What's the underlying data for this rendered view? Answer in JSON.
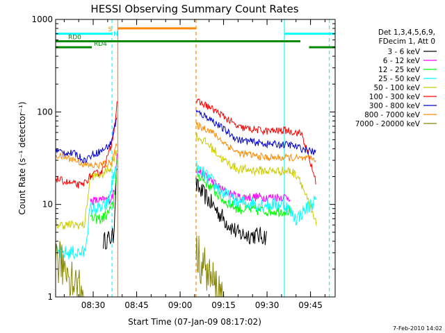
{
  "chart_data": {
    "type": "line",
    "title": "HESSI Observing Summary Count Rates",
    "xlabel": "Start Time (07-Jan-09 08:17:02)",
    "ylabel": "Count Rate (s⁻¹ detector⁻¹)",
    "yscale": "log",
    "ylim": [
      1,
      1000
    ],
    "xlim": [
      "08:17:02",
      "09:53:30"
    ],
    "x_ticks": [
      "08:30",
      "08:45",
      "09:00",
      "09:15",
      "09:30",
      "09:45"
    ],
    "y_ticks": [
      "1",
      "10",
      "100",
      "1000"
    ],
    "legend_header": [
      "Det 1,3,4,5,6,9,",
      "FDecim 1, Att 0"
    ],
    "timestamp": "7-Feb-2010 14:02",
    "gaps": [
      [
        "08:38:30",
        "09:05:30"
      ]
    ],
    "series": [
      {
        "name": "3 - 6 keV",
        "color": "#000000",
        "pre": [
          {
            "t": "08:33:30",
            "y": 4.0
          },
          {
            "t": "08:35:00",
            "y": 4.2
          },
          {
            "t": "08:37:00",
            "y": 4.5
          },
          {
            "t": "08:38:15",
            "y": 30
          }
        ],
        "post": [
          {
            "t": "09:05:30",
            "y": 16
          },
          {
            "t": "09:10:00",
            "y": 11
          },
          {
            "t": "09:15:00",
            "y": 7
          },
          {
            "t": "09:20:00",
            "y": 4.8
          },
          {
            "t": "09:30:00",
            "y": 4.5
          }
        ]
      },
      {
        "name": "6 - 12 keV",
        "color": "#ff00ff",
        "pre": [
          {
            "t": "08:29:00",
            "y": 11
          },
          {
            "t": "08:33:00",
            "y": 11
          },
          {
            "t": "08:36:00",
            "y": 11.5
          },
          {
            "t": "08:37:30",
            "y": 14
          },
          {
            "t": "08:38:15",
            "y": 40
          }
        ],
        "post": [
          {
            "t": "09:05:30",
            "y": 24
          },
          {
            "t": "09:10:00",
            "y": 19
          },
          {
            "t": "09:15:00",
            "y": 14
          },
          {
            "t": "09:20:00",
            "y": 12
          },
          {
            "t": "09:30:00",
            "y": 12
          },
          {
            "t": "09:38:00",
            "y": 12
          }
        ]
      },
      {
        "name": "12 - 25 keV",
        "color": "#00ff00",
        "pre": [
          {
            "t": "08:29:00",
            "y": 7
          },
          {
            "t": "08:33:00",
            "y": 7
          },
          {
            "t": "08:35:00",
            "y": 8
          },
          {
            "t": "08:37:00",
            "y": 10
          },
          {
            "t": "08:38:15",
            "y": 30
          }
        ],
        "post": [
          {
            "t": "09:05:30",
            "y": 22
          },
          {
            "t": "09:10:00",
            "y": 16
          },
          {
            "t": "09:15:00",
            "y": 11
          },
          {
            "t": "09:20:00",
            "y": 9
          },
          {
            "t": "09:30:00",
            "y": 8.5
          },
          {
            "t": "09:38:00",
            "y": 8.5
          }
        ]
      },
      {
        "name": "25 - 50 keV",
        "color": "#00ffff",
        "pre": [
          {
            "t": "08:17:02",
            "y": 3
          },
          {
            "t": "08:27:00",
            "y": 3
          },
          {
            "t": "08:29:00",
            "y": 9
          },
          {
            "t": "08:33:00",
            "y": 9
          },
          {
            "t": "08:35:00",
            "y": 10
          },
          {
            "t": "08:38:15",
            "y": 30
          }
        ],
        "post": [
          {
            "t": "09:05:30",
            "y": 25
          },
          {
            "t": "09:10:00",
            "y": 19
          },
          {
            "t": "09:15:00",
            "y": 13
          },
          {
            "t": "09:20:00",
            "y": 10.5
          },
          {
            "t": "09:30:00",
            "y": 10
          },
          {
            "t": "09:36:00",
            "y": 10
          },
          {
            "t": "09:40:00",
            "y": 7
          },
          {
            "t": "09:45:00",
            "y": 10
          },
          {
            "t": "09:47:00",
            "y": 11
          }
        ]
      },
      {
        "name": "50 - 100 keV",
        "color": "#cccc00",
        "pre": [
          {
            "t": "08:17:02",
            "y": 6
          },
          {
            "t": "08:27:00",
            "y": 6
          },
          {
            "t": "08:29:00",
            "y": 20
          },
          {
            "t": "08:33:00",
            "y": 21
          },
          {
            "t": "08:36:00",
            "y": 25
          },
          {
            "t": "08:38:15",
            "y": 40
          }
        ],
        "post": [
          {
            "t": "09:05:30",
            "y": 55
          },
          {
            "t": "09:10:00",
            "y": 44
          },
          {
            "t": "09:15:00",
            "y": 30
          },
          {
            "t": "09:20:00",
            "y": 24
          },
          {
            "t": "09:30:00",
            "y": 23
          },
          {
            "t": "09:38:00",
            "y": 23
          },
          {
            "t": "09:41:00",
            "y": 20
          },
          {
            "t": "09:47:00",
            "y": 6
          }
        ]
      },
      {
        "name": "100 - 300 keV",
        "color": "#ff0000",
        "pre": [
          {
            "t": "08:17:02",
            "y": 19
          },
          {
            "t": "08:22:00",
            "y": 17
          },
          {
            "t": "08:26:00",
            "y": 16
          },
          {
            "t": "08:29:00",
            "y": 20
          },
          {
            "t": "08:33:00",
            "y": 23
          },
          {
            "t": "08:36:00",
            "y": 40
          },
          {
            "t": "08:37:30",
            "y": 75
          },
          {
            "t": "08:38:15",
            "y": 135
          }
        ],
        "post": [
          {
            "t": "09:05:30",
            "y": 130
          },
          {
            "t": "09:09:00",
            "y": 118
          },
          {
            "t": "09:15:00",
            "y": 90
          },
          {
            "t": "09:20:00",
            "y": 68
          },
          {
            "t": "09:30:00",
            "y": 62
          },
          {
            "t": "09:37:00",
            "y": 63
          },
          {
            "t": "09:42:00",
            "y": 58
          },
          {
            "t": "09:47:00",
            "y": 17
          }
        ]
      },
      {
        "name": "300 - 800 keV",
        "color": "#0000cc",
        "pre": [
          {
            "t": "08:17:02",
            "y": 38
          },
          {
            "t": "08:24:00",
            "y": 35
          },
          {
            "t": "08:27:00",
            "y": 30
          },
          {
            "t": "08:30:00",
            "y": 35
          },
          {
            "t": "08:33:00",
            "y": 38
          },
          {
            "t": "08:36:00",
            "y": 45
          },
          {
            "t": "08:38:15",
            "y": 90
          }
        ],
        "post": [
          {
            "t": "09:05:30",
            "y": 100
          },
          {
            "t": "09:10:00",
            "y": 86
          },
          {
            "t": "09:15:00",
            "y": 65
          },
          {
            "t": "09:20:00",
            "y": 50
          },
          {
            "t": "09:30:00",
            "y": 45
          },
          {
            "t": "09:38:00",
            "y": 44
          },
          {
            "t": "09:42:00",
            "y": 40
          },
          {
            "t": "09:47:00",
            "y": 36
          }
        ]
      },
      {
        "name": "800 - 7000 keV",
        "color": "#ff8800",
        "pre": [
          {
            "t": "08:17:02",
            "y": 34
          },
          {
            "t": "08:23:00",
            "y": 31
          },
          {
            "t": "08:27:00",
            "y": 27
          },
          {
            "t": "08:30:00",
            "y": 26
          },
          {
            "t": "08:33:00",
            "y": 27
          },
          {
            "t": "08:36:00",
            "y": 28
          },
          {
            "t": "08:38:15",
            "y": 45
          }
        ],
        "post": [
          {
            "t": "09:05:30",
            "y": 72
          },
          {
            "t": "09:10:00",
            "y": 64
          },
          {
            "t": "09:15:00",
            "y": 47
          },
          {
            "t": "09:20:00",
            "y": 36
          },
          {
            "t": "09:30:00",
            "y": 32
          },
          {
            "t": "09:38:00",
            "y": 32
          },
          {
            "t": "09:42:00",
            "y": 31
          },
          {
            "t": "09:47:00",
            "y": 31
          }
        ]
      },
      {
        "name": "7000 - 20000 keV",
        "color": "#888800",
        "pre": [
          {
            "t": "08:17:02",
            "y": 2.5
          },
          {
            "t": "08:21:00",
            "y": 2.0
          },
          {
            "t": "08:24:00",
            "y": 1.4
          },
          {
            "t": "08:27:00",
            "y": 1.0
          }
        ],
        "post": [
          {
            "t": "09:05:30",
            "y": 3.0
          },
          {
            "t": "09:08:00",
            "y": 2.2
          },
          {
            "t": "09:12:00",
            "y": 1.3
          },
          {
            "t": "09:15:00",
            "y": 1.0
          }
        ]
      }
    ],
    "flags": [
      {
        "name": "S",
        "color": "#ff8800",
        "y": 800,
        "start": "08:38:30",
        "end": "09:05:30"
      },
      {
        "name": "N",
        "color": "#00ffff",
        "y": 700,
        "start": "08:17:02",
        "end": "08:36:30",
        "start2": "09:36:00",
        "end2": "09:53:30"
      },
      {
        "name": "RD0",
        "color": "#008800",
        "y": 580,
        "start": "08:17:02",
        "end": "09:41:30"
      },
      {
        "name": "RD4",
        "color": "#008800",
        "y": 500,
        "start": "09:44:30",
        "end": "09:53:30"
      }
    ],
    "markers": [
      {
        "t": "08:36:30",
        "color": "#00ffff",
        "style": "dashed"
      },
      {
        "t": "08:38:30",
        "color": "#ff8800",
        "style": "solid"
      },
      {
        "t": "09:05:30",
        "color": "#ff8800",
        "style": "dashed"
      },
      {
        "t": "09:36:00",
        "color": "#00ffff",
        "style": "solid"
      },
      {
        "t": "09:51:30",
        "color": "#00ffff",
        "style": "dashed"
      }
    ]
  }
}
